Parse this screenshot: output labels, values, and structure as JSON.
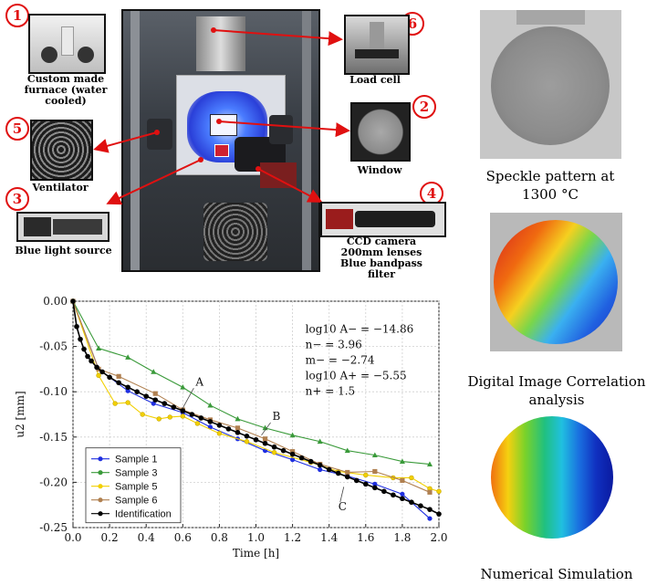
{
  "setup": {
    "callouts": [
      {
        "num": "1",
        "caption": "Custom made furnace (water cooled)"
      },
      {
        "num": "5",
        "caption": "Ventilator"
      },
      {
        "num": "3",
        "caption": "Blue light source"
      },
      {
        "num": "6",
        "caption": "Load cell"
      },
      {
        "num": "2",
        "caption": "Window"
      },
      {
        "num": "4",
        "caption": "CCD camera 200mm lenses Blue bandpass filter"
      }
    ]
  },
  "right_panel": {
    "speckle_caption": "Speckle pattern at 1300 °C",
    "dic_caption": "Digital Image Correlation analysis",
    "sim_caption": "Numerical Simulation"
  },
  "colors": {
    "callout_red": "#e01010",
    "sample1": "#1f2fe0",
    "sample3": "#3a9a3a",
    "sample5": "#f2d000",
    "sample6": "#b08050",
    "identification": "#000000"
  },
  "chart_data": {
    "type": "line",
    "xlabel": "Time [h]",
    "ylabel": "u2 [mm]",
    "xlim": [
      0,
      2.0
    ],
    "ylim": [
      -0.25,
      0.0
    ],
    "xticks": [
      "0.0",
      "0.2",
      "0.4",
      "0.6",
      "0.8",
      "1.0",
      "1.2",
      "1.4",
      "1.6",
      "1.8",
      "2.0"
    ],
    "yticks": [
      "0.00",
      "-0.05",
      "-0.10",
      "-0.15",
      "-0.20",
      "-0.25"
    ],
    "grid": true,
    "legend_position": "bottom-left",
    "annotations": [
      {
        "text": "A",
        "x": 0.67,
        "y": -0.093
      },
      {
        "text": "B",
        "x": 1.09,
        "y": -0.131
      },
      {
        "text": "C",
        "x": 1.45,
        "y": -0.231
      }
    ],
    "params": [
      "log10 A− = −14.86",
      "n− = 3.96",
      "m− = −2.74",
      "log10 A+ = −5.55",
      "n+ = 1.5"
    ],
    "series": [
      {
        "name": "Sample 1",
        "color": "#1f2fe0",
        "marker": "circle",
        "x": [
          0.0,
          0.14,
          0.3,
          0.44,
          0.6,
          0.75,
          0.9,
          1.05,
          1.2,
          1.35,
          1.5,
          1.65,
          1.8,
          1.95
        ],
        "y": [
          0.0,
          -0.075,
          -0.099,
          -0.113,
          -0.123,
          -0.139,
          -0.152,
          -0.165,
          -0.175,
          -0.186,
          -0.193,
          -0.202,
          -0.213,
          -0.24
        ]
      },
      {
        "name": "Sample 3",
        "color": "#3a9a3a",
        "marker": "triangle",
        "x": [
          0.0,
          0.14,
          0.3,
          0.44,
          0.6,
          0.75,
          0.9,
          1.05,
          1.2,
          1.35,
          1.5,
          1.65,
          1.8,
          1.95
        ],
        "y": [
          0.0,
          -0.052,
          -0.062,
          -0.078,
          -0.095,
          -0.115,
          -0.13,
          -0.14,
          -0.148,
          -0.155,
          -0.165,
          -0.17,
          -0.177,
          -0.18
        ]
      },
      {
        "name": "Sample 5",
        "color": "#f2d000",
        "marker": "star",
        "x": [
          0.0,
          0.14,
          0.23,
          0.3,
          0.38,
          0.47,
          0.53,
          0.6,
          0.68,
          0.8,
          0.95,
          1.1,
          1.3,
          1.45,
          1.6,
          1.75,
          1.85,
          1.95,
          2.0
        ],
        "y": [
          0.0,
          -0.082,
          -0.113,
          -0.112,
          -0.125,
          -0.13,
          -0.128,
          -0.127,
          -0.135,
          -0.146,
          -0.155,
          -0.167,
          -0.178,
          -0.188,
          -0.192,
          -0.195,
          -0.195,
          -0.207,
          -0.21
        ]
      },
      {
        "name": "Sample 6",
        "color": "#b08050",
        "marker": "square",
        "x": [
          0.0,
          0.14,
          0.25,
          0.45,
          0.6,
          0.75,
          0.9,
          1.05,
          1.2,
          1.35,
          1.5,
          1.65,
          1.8,
          1.95
        ],
        "y": [
          0.0,
          -0.075,
          -0.083,
          -0.102,
          -0.12,
          -0.131,
          -0.14,
          -0.152,
          -0.166,
          -0.18,
          -0.189,
          -0.188,
          -0.198,
          -0.211
        ]
      },
      {
        "name": "Identification",
        "color": "#000000",
        "marker": "dot",
        "x": [
          0.0,
          0.02,
          0.04,
          0.06,
          0.08,
          0.1,
          0.13,
          0.16,
          0.2,
          0.25,
          0.3,
          0.35,
          0.4,
          0.45,
          0.5,
          0.55,
          0.6,
          0.65,
          0.7,
          0.75,
          0.8,
          0.85,
          0.9,
          0.95,
          1.0,
          1.05,
          1.1,
          1.15,
          1.2,
          1.25,
          1.3,
          1.35,
          1.4,
          1.45,
          1.5,
          1.55,
          1.6,
          1.65,
          1.7,
          1.75,
          1.8,
          1.85,
          1.9,
          1.95,
          2.0
        ],
        "y": [
          0.0,
          -0.028,
          -0.042,
          -0.053,
          -0.061,
          -0.066,
          -0.073,
          -0.078,
          -0.084,
          -0.09,
          -0.095,
          -0.1,
          -0.105,
          -0.109,
          -0.113,
          -0.117,
          -0.121,
          -0.125,
          -0.129,
          -0.133,
          -0.137,
          -0.141,
          -0.145,
          -0.149,
          -0.153,
          -0.157,
          -0.161,
          -0.165,
          -0.169,
          -0.173,
          -0.177,
          -0.181,
          -0.186,
          -0.19,
          -0.194,
          -0.198,
          -0.202,
          -0.206,
          -0.21,
          -0.214,
          -0.218,
          -0.222,
          -0.226,
          -0.23,
          -0.235
        ]
      }
    ]
  }
}
